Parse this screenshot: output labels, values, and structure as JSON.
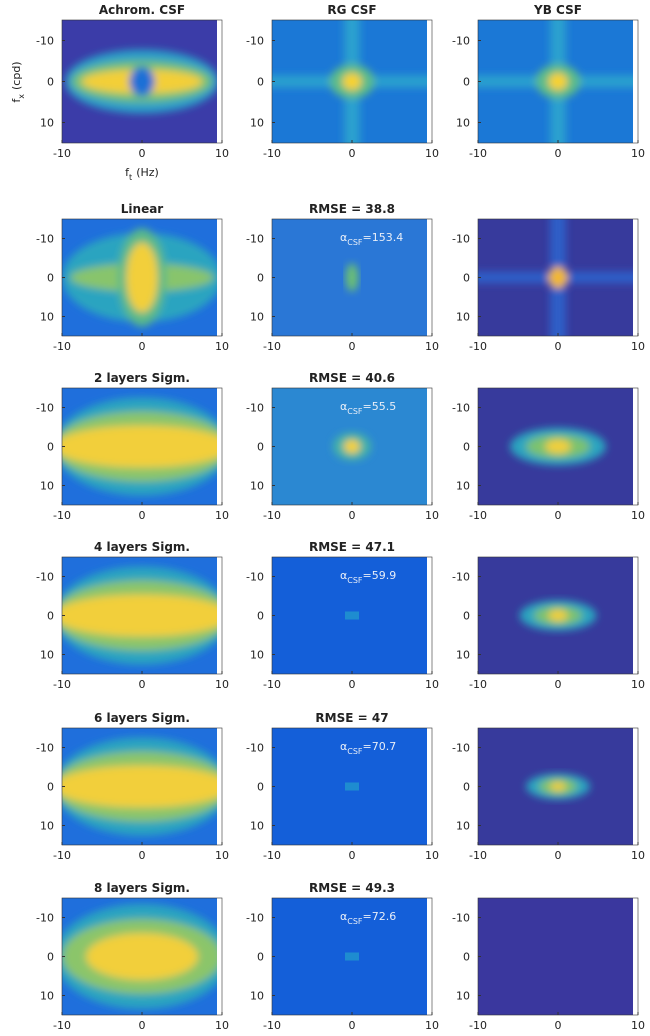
{
  "xticks": [
    -10,
    0,
    10
  ],
  "yticks": [
    -10,
    0,
    10
  ],
  "y_label": {
    "base": "f",
    "sub": "x",
    "unit": "(cpd)"
  },
  "x_label": {
    "base": "f",
    "sub": "t",
    "unit": "(Hz)"
  },
  "panels": [
    [
      {
        "title": "Achrom. CSF"
      },
      {
        "title": "RG CSF"
      },
      {
        "title": "YB CSF"
      }
    ],
    [
      {
        "title": "Linear"
      },
      {
        "title": "RMSE = 38.8",
        "annotation": {
          "symbol": "α",
          "sub": "CSF",
          "sep": "=",
          "value": 153.4
        }
      },
      {}
    ],
    [
      {
        "title": "2 layers Sigm."
      },
      {
        "title": "RMSE = 40.6",
        "annotation": {
          "symbol": "α",
          "sub": "CSF",
          "sep": "=",
          "value": 55.5
        }
      },
      {}
    ],
    [
      {
        "title": "4 layers Sigm."
      },
      {
        "title": "RMSE = 47.1",
        "annotation": {
          "symbol": "α",
          "sub": "CSF",
          "sep": "=",
          "value": 59.9
        }
      },
      {}
    ],
    [
      {
        "title": "6 layers Sigm."
      },
      {
        "title": "RMSE = 47",
        "annotation": {
          "symbol": "α",
          "sub": "CSF",
          "sep": "=",
          "value": 70.7
        }
      },
      {}
    ],
    [
      {
        "title": "8 layers Sigm."
      },
      {
        "title": "RMSE = 49.3",
        "annotation": {
          "symbol": "α",
          "sub": "CSF",
          "sep": "=",
          "value": 72.6
        }
      },
      {}
    ]
  ]
}
